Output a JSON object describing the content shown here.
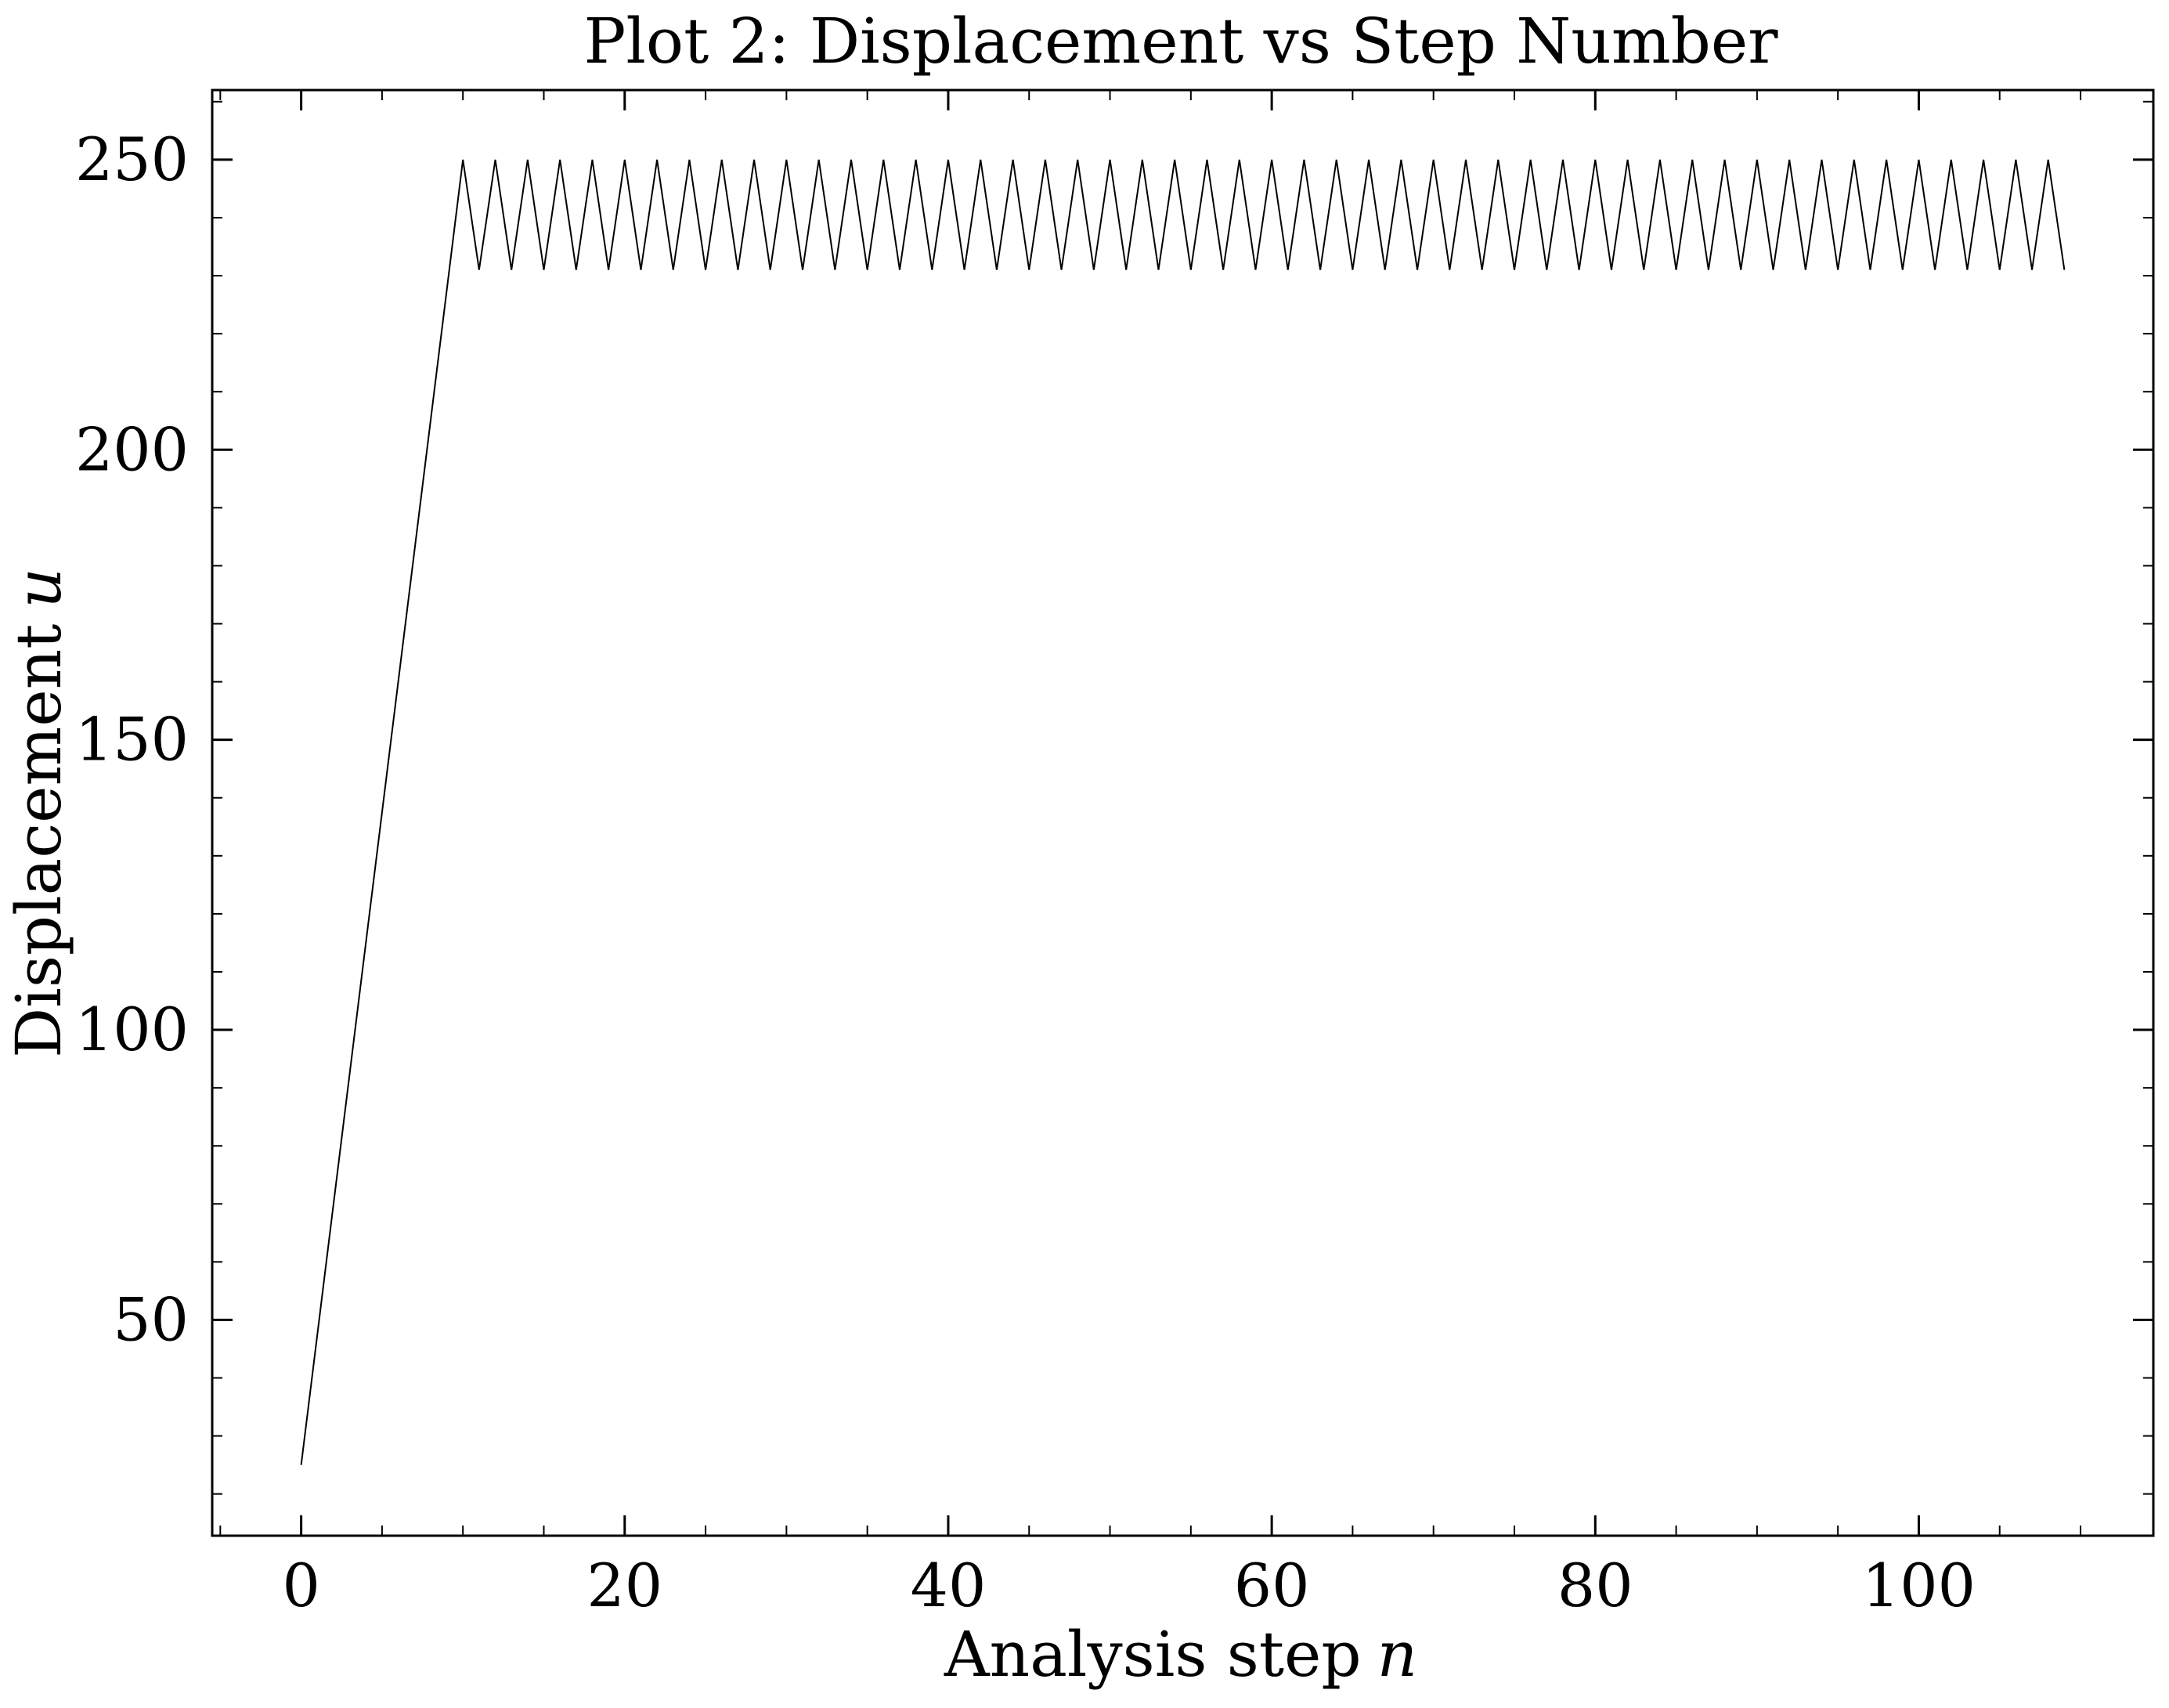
{
  "chart_data": {
    "type": "line",
    "title": "Plot 2: Displacement vs Step Number",
    "xlabel": "Analysis step",
    "xlabel_var": "n",
    "ylabel": "Displacement",
    "ylabel_var": "u",
    "xlim": [
      -5.5,
      114.5
    ],
    "ylim": [
      12.8,
      262.0
    ],
    "xticks": [
      0,
      20,
      40,
      60,
      80,
      100
    ],
    "xtick_labels": [
      "0",
      "20",
      "40",
      "60",
      "80",
      "100"
    ],
    "yticks": [
      50,
      100,
      150,
      200,
      250
    ],
    "ytick_labels": [
      "50",
      "100",
      "150",
      "200",
      "250"
    ],
    "grid": false,
    "series": [
      {
        "color": "#000000",
        "description": "Linear ramp from 25 to 250 over steps 0-10, then zigzag alternating 250 (even steps) and 231 (odd steps) up to step 109",
        "x": [
          0,
          1,
          2,
          3,
          4,
          5,
          6,
          7,
          8,
          9,
          10,
          11,
          12,
          13,
          14,
          15,
          16,
          17,
          18,
          19,
          20,
          21,
          22,
          23,
          24,
          25,
          26,
          27,
          28,
          29,
          30,
          31,
          32,
          33,
          34,
          35,
          36,
          37,
          38,
          39,
          40,
          41,
          42,
          43,
          44,
          45,
          46,
          47,
          48,
          49,
          50,
          51,
          52,
          53,
          54,
          55,
          56,
          57,
          58,
          59,
          60,
          61,
          62,
          63,
          64,
          65,
          66,
          67,
          68,
          69,
          70,
          71,
          72,
          73,
          74,
          75,
          76,
          77,
          78,
          79,
          80,
          81,
          82,
          83,
          84,
          85,
          86,
          87,
          88,
          89,
          90,
          91,
          92,
          93,
          94,
          95,
          96,
          97,
          98,
          99,
          100,
          101,
          102,
          103,
          104,
          105,
          106,
          107,
          108,
          109
        ],
        "y": [
          25,
          47.5,
          70,
          92.5,
          115,
          137.5,
          160,
          182.5,
          205,
          227.5,
          250,
          231,
          250,
          231,
          250,
          231,
          250,
          231,
          250,
          231,
          250,
          231,
          250,
          231,
          250,
          231,
          250,
          231,
          250,
          231,
          250,
          231,
          250,
          231,
          250,
          231,
          250,
          231,
          250,
          231,
          250,
          231,
          250,
          231,
          250,
          231,
          250,
          231,
          250,
          231,
          250,
          231,
          250,
          231,
          250,
          231,
          250,
          231,
          250,
          231,
          250,
          231,
          250,
          231,
          250,
          231,
          250,
          231,
          250,
          231,
          250,
          231,
          250,
          231,
          250,
          231,
          250,
          231,
          250,
          231,
          250,
          231,
          250,
          231,
          250,
          231,
          250,
          231,
          250,
          231,
          250,
          231,
          250,
          231,
          250,
          231,
          250,
          231,
          250,
          231,
          250,
          231,
          250,
          231,
          250,
          231,
          250,
          231,
          250,
          231
        ]
      }
    ]
  }
}
